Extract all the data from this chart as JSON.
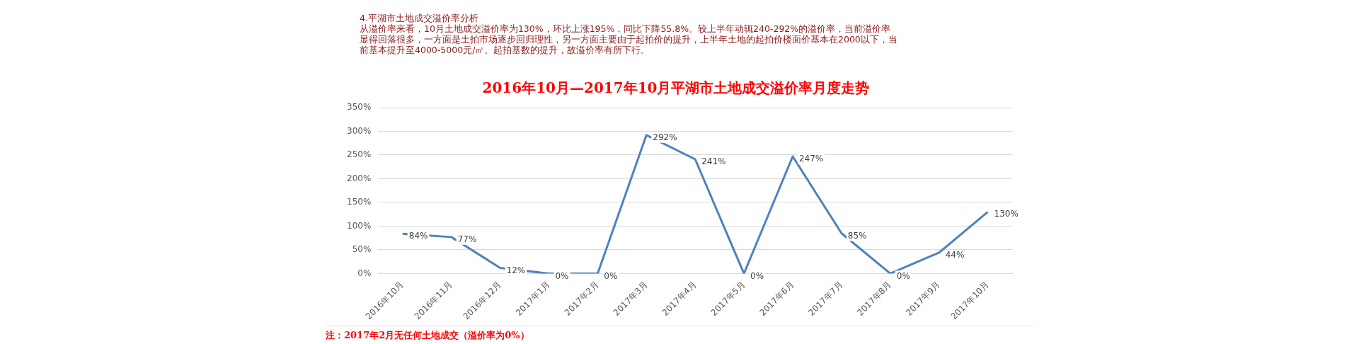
{
  "chart_data": {
    "type": "line",
    "title": "2016年10月—2017年10月平湖市土地成交溢价率月度走势",
    "annotations": [
      "4.平湖市土地成交溢价率分析",
      "从溢价率来看，10月土地成交溢价率为130%，环比上涨195%，同比下降55.8%。较上半年动辄240-292%的溢价率，当前溢价率显得回落很多，一方面是土拍市场逐步回归理性，另一方面主要由于起拍价的提升，上半年土地的起拍价楼面价基本在2000以下，当前基本提升至4000-5000元/㎡。起拍基数的提升，故溢价率有所下行。",
      "注：2017年2月无任何土地成交（溢价率为0%）"
    ],
    "categories": [
      "2016年10月",
      "2016年11月",
      "2016年12月",
      "2017年1月",
      "2017年2月",
      "2017年3月",
      "2017年4月",
      "2017年5月",
      "2017年6月",
      "2017年7月",
      "2017年8月",
      "2017年9月",
      "2017年10月"
    ],
    "series": [
      {
        "color": "#4f81bd",
        "values": [
          84,
          77,
          12,
          0,
          0,
          292,
          241,
          0,
          247,
          85,
          0,
          44,
          130
        ],
        "value_labels": [
          "84%",
          "77%",
          "12%",
          "0%",
          "0%",
          "292%",
          "241%",
          "0%",
          "247%",
          "85%",
          "0%",
          "44%",
          "130%"
        ]
      }
    ],
    "ylim": [
      0,
      350
    ],
    "yticks": [
      {
        "value": 0,
        "label": "0%"
      },
      {
        "value": 50,
        "label": "50%"
      },
      {
        "value": 100,
        "label": "100%"
      },
      {
        "value": 150,
        "label": "150%"
      },
      {
        "value": 200,
        "label": "200%"
      },
      {
        "value": 250,
        "label": "250%"
      },
      {
        "value": 300,
        "label": "300%"
      },
      {
        "value": 350,
        "label": "350%"
      }
    ],
    "grid": "y",
    "legend": false,
    "marker": "none",
    "line_style": "solid"
  }
}
